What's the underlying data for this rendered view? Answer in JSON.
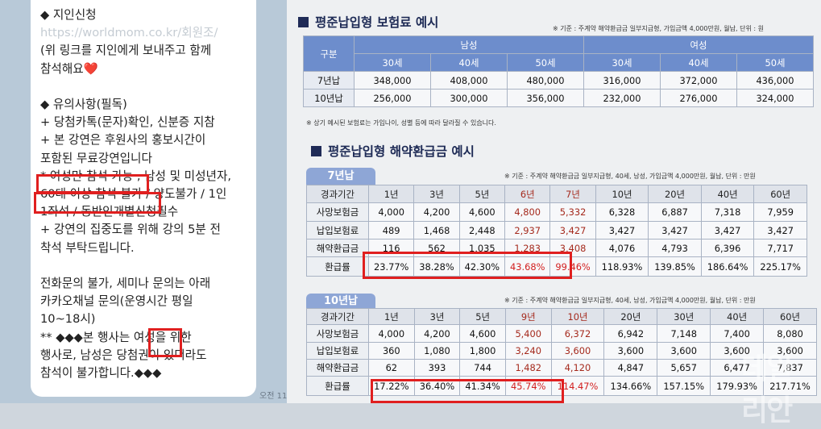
{
  "chat": {
    "lines": [
      "◆ 지인신청",
      "https://worldmom.co.kr/회원조/",
      "(위 링크를 지인에게 보내주고 함께",
      "참석해요❤️",
      "",
      "◆ 유의사항(필독)",
      "+ 당첨카톡(문자)확인, 신분증 지참",
      "+ 본 강연은 후원사의 홍보시간이",
      "포함된 무료강연입니다",
      "* 여성만 참석 가능 , 남성 및 미성년자,",
      "60대 이상 참석 불가 / 양도불가 / 1인",
      "1좌석 / 동반인개별신청필수",
      "+ 강연의 집중도를 위해 강의 5분 전",
      "착석 부탁드립니다.",
      "",
      "전화문의 불가, 세미나 문의는 아래",
      "카카오채널 문의(운영시간 평일",
      "10~18시)",
      "** ◆◆◆본 행사는 여성을 위한",
      "행사로, 남성은 당첨권이 있더라도",
      "참석이 불가합니다.◆◆◆"
    ],
    "time": "오전 11"
  },
  "premium": {
    "title": "평준납입형 보험료 예시",
    "note": "※ 기준 : 주계약 해약환급금 일부지급형, 가입금액 4,000만원, 월납, 단위 : 원",
    "header_label": "구분",
    "male": "남성",
    "female": "여성",
    "ages": [
      "30세",
      "40세",
      "50세",
      "30세",
      "40세",
      "50세"
    ],
    "rows": [
      {
        "label": "7년납",
        "values": [
          "348,000",
          "408,000",
          "480,000",
          "316,000",
          "372,000",
          "436,000"
        ]
      },
      {
        "label": "10년납",
        "values": [
          "256,000",
          "300,000",
          "356,000",
          "232,000",
          "276,000",
          "324,000"
        ]
      }
    ],
    "footnote": "※ 상기 예시된 보험료는 가입나이, 성별 등에 따라 달라질 수 있습니다."
  },
  "refund": {
    "title": "평준납입형 해약환급금 예시",
    "tables": [
      {
        "band": "7년납",
        "note": "※ 기준 : 주계약 해약환급금 일부지급형, 40세, 남성, 가입금액 4,000만원, 월납, 단위 : 만원",
        "header_label": "경과기간",
        "periods": [
          "1년",
          "3년",
          "5년",
          "6년",
          "7년",
          "10년",
          "20년",
          "40년",
          "60년"
        ],
        "rows": [
          {
            "label": "사망보험금",
            "values": [
              "4,000",
              "4,200",
              "4,600",
              "4,800",
              "5,332",
              "6,328",
              "6,887",
              "7,318",
              "7,959"
            ]
          },
          {
            "label": "납입보험료",
            "values": [
              "489",
              "1,468",
              "2,448",
              "2,937",
              "3,427",
              "3,427",
              "3,427",
              "3,427",
              "3,427"
            ]
          },
          {
            "label": "해약환급금",
            "values": [
              "116",
              "562",
              "1,035",
              "1,283",
              "3,408",
              "4,076",
              "4,793",
              "6,396",
              "7,717"
            ]
          },
          {
            "label": "환급률",
            "values": [
              "23.77%",
              "38.28%",
              "42.30%",
              "43.68%",
              "99.46%",
              "118.93%",
              "139.85%",
              "186.64%",
              "225.17%"
            ]
          }
        ]
      },
      {
        "band": "10년납",
        "note": "※ 기준 : 주계약 해약환급금 일부지급형, 40세, 남성, 가입금액 4,000만원, 월납, 단위 : 만원",
        "header_label": "경과기간",
        "periods": [
          "1년",
          "3년",
          "5년",
          "9년",
          "10년",
          "20년",
          "30년",
          "40년",
          "60년"
        ],
        "rows": [
          {
            "label": "사망보험금",
            "values": [
              "4,000",
              "4,200",
              "4,600",
              "5,400",
              "6,372",
              "6,942",
              "7,148",
              "7,400",
              "8,080"
            ]
          },
          {
            "label": "납입보험료",
            "values": [
              "360",
              "1,080",
              "1,800",
              "3,240",
              "3,600",
              "3,600",
              "3,600",
              "3,600",
              "3,600"
            ]
          },
          {
            "label": "해약환급금",
            "values": [
              "62",
              "393",
              "744",
              "1,482",
              "4,120",
              "4,847",
              "5,657",
              "6,477",
              "7,837"
            ]
          },
          {
            "label": "환급률",
            "values": [
              "17.22%",
              "36.40%",
              "41.34%",
              "45.74%",
              "114.47%",
              "134.66%",
              "157.15%",
              "179.93%",
              "217.71%"
            ]
          }
        ]
      }
    ]
  },
  "watermark": "데일리안"
}
